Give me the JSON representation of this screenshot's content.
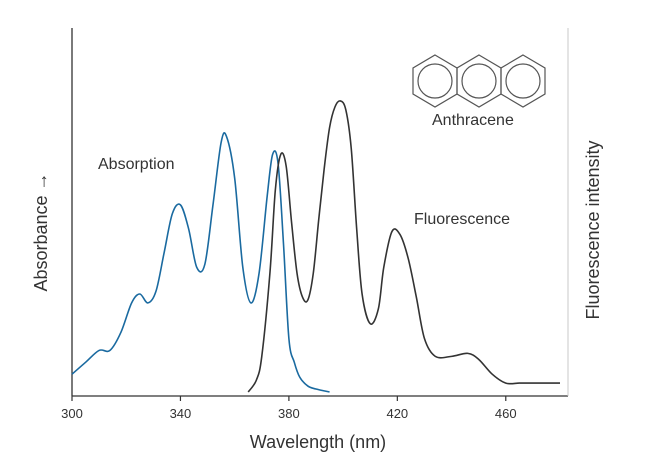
{
  "chart_data": {
    "type": "line",
    "xlabel": "Wavelength (nm)",
    "ylabel_left": "Absorbance →",
    "ylabel_right": "Fluorescence intensity",
    "xlim": [
      300,
      480
    ],
    "ylim": [
      0,
      1
    ],
    "x_ticks": [
      300,
      340,
      380,
      420,
      460
    ],
    "grid": false,
    "series": [
      {
        "name": "Absorption",
        "color": "#1a6aa0",
        "x": [
          300,
          305,
          310,
          314,
          318,
          322,
          325,
          328,
          331,
          334,
          337,
          340,
          343,
          346,
          349,
          352,
          355,
          357,
          360,
          363,
          366,
          369,
          372,
          374,
          376,
          378,
          380,
          382,
          384,
          387,
          390,
          395
        ],
        "y": [
          0.06,
          0.1,
          0.14,
          0.14,
          0.2,
          0.3,
          0.33,
          0.3,
          0.34,
          0.47,
          0.6,
          0.63,
          0.55,
          0.42,
          0.43,
          0.63,
          0.84,
          0.86,
          0.72,
          0.42,
          0.3,
          0.4,
          0.66,
          0.8,
          0.77,
          0.5,
          0.18,
          0.1,
          0.05,
          0.02,
          0.01,
          0.0
        ]
      },
      {
        "name": "Fluorescence",
        "color": "#333333",
        "x": [
          365,
          368,
          370,
          373,
          375,
          377,
          379,
          381,
          383,
          385,
          387,
          389,
          391,
          393,
          395,
          397,
          399,
          401,
          403,
          405,
          407,
          410,
          413,
          415,
          418,
          421,
          424,
          427,
          430,
          434,
          440,
          446,
          450,
          455,
          460,
          465,
          470,
          480
        ],
        "y": [
          0.0,
          0.04,
          0.12,
          0.4,
          0.68,
          0.8,
          0.76,
          0.57,
          0.4,
          0.32,
          0.31,
          0.4,
          0.58,
          0.75,
          0.89,
          0.96,
          0.98,
          0.95,
          0.82,
          0.55,
          0.33,
          0.23,
          0.28,
          0.42,
          0.54,
          0.53,
          0.45,
          0.32,
          0.18,
          0.12,
          0.12,
          0.13,
          0.11,
          0.06,
          0.03,
          0.03,
          0.03,
          0.03
        ]
      }
    ],
    "annotations": {
      "absorption_label": "Absorption",
      "fluorescence_label": "Fluorescence",
      "molecule_label": "Anthracene"
    }
  }
}
